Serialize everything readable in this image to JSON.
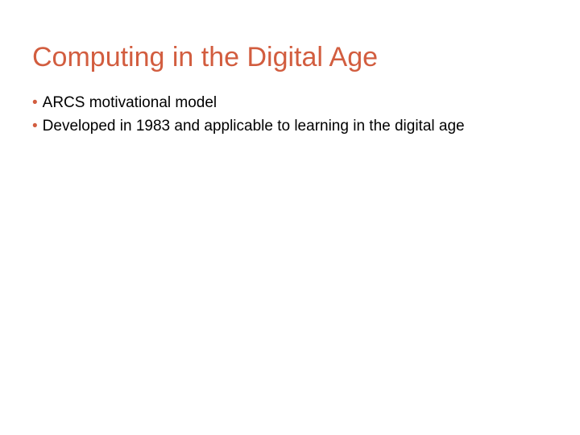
{
  "slide": {
    "title": "Computing in the Digital Age",
    "title_color": "#d25d3f",
    "bullet_marker": "•",
    "bullet_marker_color": "#d25d3f",
    "text_color": "#000000",
    "background_color": "#ffffff",
    "title_fontsize": 34,
    "body_fontsize": 19,
    "bullets": [
      {
        "text": "ARCS motivational model"
      },
      {
        "text": "Developed in 1983 and applicable to learning in the digital age"
      }
    ]
  }
}
